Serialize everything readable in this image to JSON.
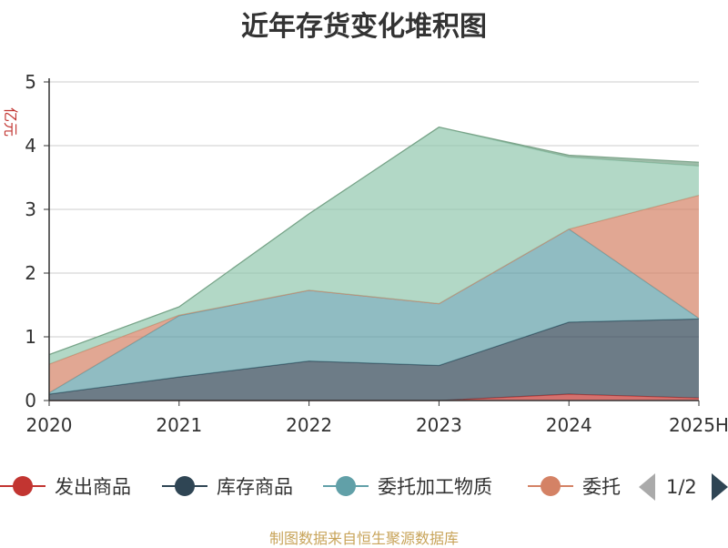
{
  "chart_data": {
    "type": "area",
    "stacked": true,
    "title": "近年存货变化堆积图",
    "ylabel": "亿元",
    "categories": [
      "2020",
      "2021",
      "2022",
      "2023",
      "2024",
      "2025H"
    ],
    "ylim": [
      0,
      5
    ],
    "yticks": [
      "0",
      "1",
      "2",
      "3",
      "4",
      "5"
    ],
    "grid": true,
    "legend_position": "bottom",
    "series": [
      {
        "name": "发出商品",
        "color": "#c23531",
        "values": [
          0.0,
          0.0,
          0.0,
          0.0,
          0.1,
          0.04
        ]
      },
      {
        "name": "库存商品",
        "color": "#2f4554",
        "values": [
          0.1,
          0.37,
          0.62,
          0.55,
          1.13,
          1.24
        ]
      },
      {
        "name": "委托加工物质",
        "color": "#61a0a8",
        "values": [
          0.02,
          0.96,
          1.11,
          0.97,
          1.46,
          0.01
        ]
      },
      {
        "name": "委托",
        "color": "#d48265",
        "values": [
          0.45,
          0.01,
          0.0,
          0.0,
          0.0,
          1.93
        ]
      },
      {
        "color": "#91c7ae",
        "values": [
          0.15,
          0.13,
          1.2,
          2.77,
          1.13,
          0.46
        ]
      },
      {
        "color": "#749f83",
        "values": [
          0.0,
          0.0,
          0.0,
          0.0,
          0.03,
          0.06
        ]
      }
    ]
  },
  "legend": {
    "items": [
      "发出商品",
      "库存商品",
      "委托加工物质",
      "委托"
    ],
    "page_indicator": "1/2"
  },
  "source": "制图数据来自恒生聚源数据库"
}
